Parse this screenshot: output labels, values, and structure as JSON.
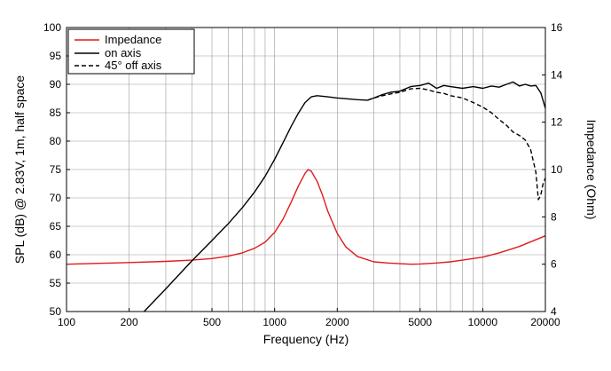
{
  "chart_data": {
    "type": "line",
    "title": "",
    "xlabel": "Frequency (Hz)",
    "ylabel_left": "SPL (dB) @ 2.83V, 1m, half space",
    "ylabel_right": "Impedance (Ohm)",
    "x_scale": "log",
    "xlim": [
      100,
      20000
    ],
    "ylim_left": [
      50,
      100
    ],
    "ylim_right": [
      4,
      16
    ],
    "x_tick_labels": [
      "100",
      "200",
      "500",
      "1000",
      "2000",
      "5000",
      "10000",
      "20000"
    ],
    "x_ticks": [
      100,
      200,
      500,
      1000,
      2000,
      5000,
      10000,
      20000
    ],
    "y_left_tick_labels": [
      "50",
      "55",
      "60",
      "65",
      "70",
      "75",
      "80",
      "85",
      "90",
      "95",
      "100"
    ],
    "y_left_ticks": [
      50,
      55,
      60,
      65,
      70,
      75,
      80,
      85,
      90,
      95,
      100
    ],
    "y_right_tick_labels": [
      "4",
      "6",
      "8",
      "10",
      "12",
      "14",
      "16"
    ],
    "y_right_ticks": [
      4,
      6,
      8,
      10,
      12,
      14,
      16
    ],
    "grid": true,
    "legend_position": "top-left",
    "series": [
      {
        "name": "Impedance",
        "axis": "right",
        "color": "#e01b1b",
        "style": "solid",
        "x": [
          100,
          150,
          200,
          300,
          400,
          500,
          600,
          700,
          800,
          900,
          1000,
          1100,
          1200,
          1300,
          1400,
          1450,
          1500,
          1600,
          1700,
          1800,
          2000,
          2200,
          2500,
          3000,
          3500,
          4000,
          4500,
          5000,
          6000,
          7000,
          8000,
          10000,
          12000,
          15000,
          20000
        ],
        "y": [
          6.0,
          6.04,
          6.07,
          6.12,
          6.17,
          6.24,
          6.34,
          6.48,
          6.67,
          6.93,
          7.34,
          7.92,
          8.62,
          9.3,
          9.84,
          10.0,
          9.93,
          9.5,
          8.9,
          8.24,
          7.3,
          6.73,
          6.32,
          6.1,
          6.05,
          6.02,
          6.0,
          6.01,
          6.05,
          6.1,
          6.17,
          6.3,
          6.48,
          6.75,
          7.2
        ]
      },
      {
        "name": "on axis",
        "axis": "left",
        "color": "#000000",
        "style": "solid",
        "x": [
          236,
          300,
          400,
          500,
          600,
          700,
          800,
          900,
          1000,
          1100,
          1200,
          1300,
          1400,
          1500,
          1600,
          1800,
          2000,
          2500,
          2800,
          3000,
          3300,
          3600,
          4000,
          4500,
          5000,
          5500,
          6000,
          6500,
          7000,
          8000,
          9000,
          10000,
          11000,
          12000,
          13000,
          14000,
          15000,
          16000,
          17000,
          18000,
          19000,
          20000
        ],
        "y": [
          50,
          54,
          58.9,
          62.5,
          65.5,
          68.3,
          71,
          73.8,
          76.8,
          79.8,
          82.6,
          84.9,
          86.8,
          87.8,
          88.0,
          87.8,
          87.6,
          87.3,
          87.2,
          87.6,
          88.2,
          88.6,
          88.8,
          89.6,
          89.8,
          90.2,
          89.3,
          89.8,
          89.6,
          89.3,
          89.6,
          89.3,
          89.7,
          89.5,
          90.0,
          90.4,
          89.7,
          90.0,
          89.7,
          89.8,
          88.5,
          85.8
        ]
      },
      {
        "name": "45° off axis",
        "axis": "left",
        "color": "#000000",
        "style": "dashed",
        "x": [
          2800,
          3000,
          3300,
          3600,
          4000,
          4500,
          5000,
          5500,
          6000,
          6500,
          7000,
          7500,
          8000,
          9000,
          10000,
          11000,
          12000,
          13000,
          14000,
          15000,
          16000,
          17000,
          18000,
          18500,
          19000,
          19500,
          20000
        ],
        "y": [
          87.2,
          87.6,
          88.0,
          88.3,
          88.6,
          89.2,
          89.3,
          89.0,
          88.6,
          88.4,
          88.0,
          87.8,
          87.6,
          86.8,
          86.0,
          85.0,
          83.8,
          82.8,
          81.6,
          81.0,
          80.2,
          78.5,
          74.5,
          69.7,
          70.5,
          72.5,
          73.5
        ]
      }
    ]
  }
}
